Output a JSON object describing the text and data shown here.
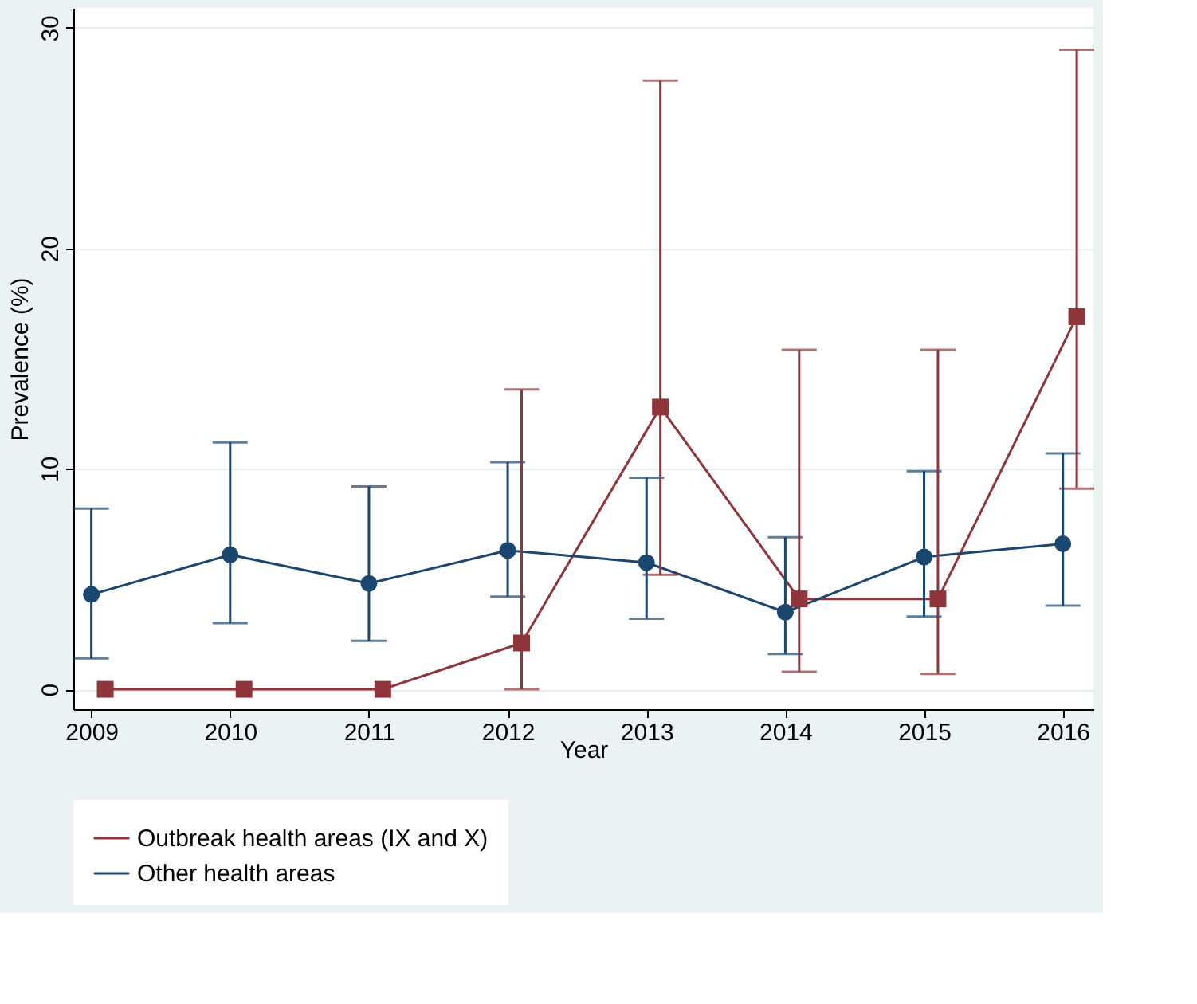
{
  "chart_data": {
    "type": "line",
    "xlabel": "Year",
    "ylabel": "Prevalence (%)",
    "xlim": [
      2008.87,
      2016.22
    ],
    "xticks": [
      2009,
      2010,
      2011,
      2012,
      2013,
      2014,
      2015,
      2016
    ],
    "ylim": [
      -0.9,
      30.9
    ],
    "yticks": [
      0,
      10,
      20,
      30
    ],
    "grid": "y",
    "legend": "bottom",
    "series": [
      {
        "name": "Outbreak health areas (IX and X)",
        "color": "#90353b",
        "marker": "square",
        "x": [
          2009.1,
          2010.1,
          2011.1,
          2012.1,
          2013.1,
          2014.1,
          2015.1,
          2016.1
        ],
        "values": [
          0,
          0,
          0,
          2.1,
          12.8,
          4.1,
          4.1,
          16.9
        ],
        "errors": [
          null,
          null,
          null,
          [
            0,
            13.6
          ],
          [
            5.2,
            27.6
          ],
          [
            0.8,
            15.4
          ],
          [
            0.7,
            15.4
          ],
          [
            9.1,
            29.0
          ]
        ]
      },
      {
        "name": "Other health areas",
        "color": "#1a476f",
        "marker": "circle",
        "x": [
          2009,
          2010,
          2011,
          2012,
          2013,
          2014,
          2015,
          2016
        ],
        "values": [
          4.3,
          6.1,
          4.8,
          6.3,
          5.75,
          3.5,
          6.0,
          6.6
        ],
        "errors": [
          [
            1.4,
            8.2
          ],
          [
            3.0,
            11.2
          ],
          [
            2.2,
            9.2
          ],
          [
            4.2,
            10.3
          ],
          [
            3.2,
            9.6
          ],
          [
            1.6,
            6.9
          ],
          [
            3.3,
            9.9
          ],
          [
            3.8,
            10.7
          ]
        ]
      }
    ]
  }
}
